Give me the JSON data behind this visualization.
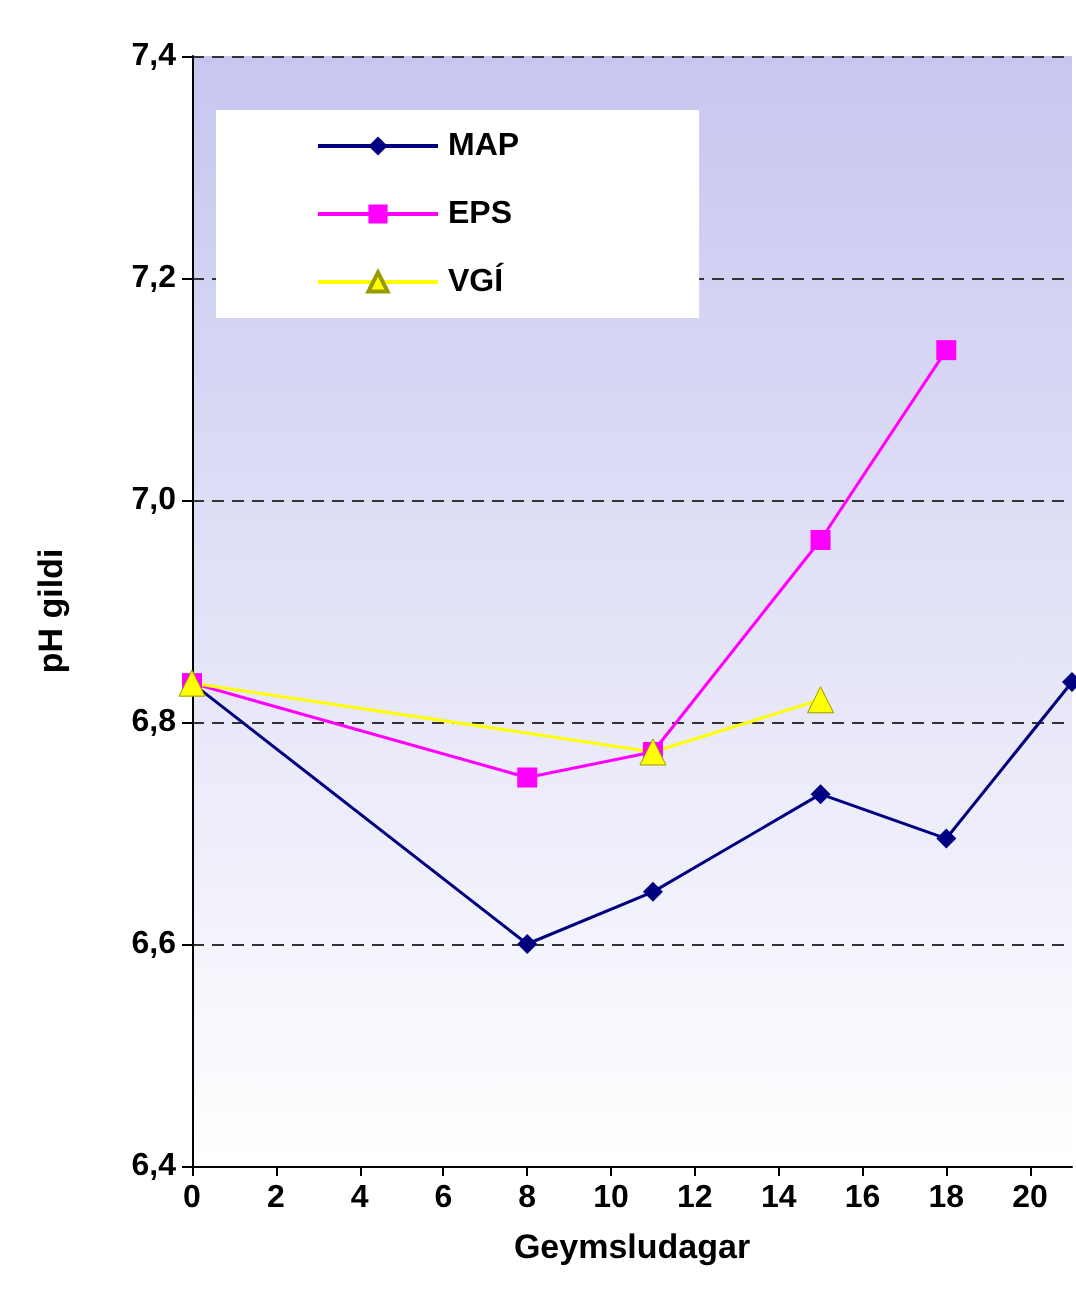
{
  "chart_data": {
    "type": "line",
    "xlabel": "Geymsludagar",
    "ylabel": "pH gildi",
    "xlim": [
      0,
      21
    ],
    "xticks": [
      0,
      2,
      4,
      6,
      8,
      10,
      12,
      14,
      16,
      18,
      20
    ],
    "ylim": [
      6.4,
      7.4
    ],
    "yticks": [
      {
        "value": 6.4,
        "label": "6,4"
      },
      {
        "value": 6.6,
        "label": "6,6"
      },
      {
        "value": 6.8,
        "label": "6,8"
      },
      {
        "value": 7.0,
        "label": "7,0"
      },
      {
        "value": 7.2,
        "label": "7,2"
      },
      {
        "value": 7.4,
        "label": "7,4"
      }
    ],
    "grid": "y",
    "legend": "top left",
    "series": [
      {
        "name": "MAP",
        "color": "#000080",
        "marker": "diamond",
        "x": [
          0,
          8,
          11,
          15,
          18,
          21
        ],
        "values": [
          6.835,
          6.6,
          6.647,
          6.735,
          6.695,
          6.836
        ]
      },
      {
        "name": "EPS",
        "color": "#ff00ff",
        "marker": "square",
        "x": [
          0,
          8,
          11,
          15,
          18
        ],
        "values": [
          6.835,
          6.75,
          6.773,
          6.964,
          7.135
        ]
      },
      {
        "name": "VGÍ",
        "color": "#ffff00",
        "marker": "triangle",
        "x": [
          0,
          11,
          15
        ],
        "values": [
          6.835,
          6.773,
          6.82
        ]
      }
    ]
  }
}
